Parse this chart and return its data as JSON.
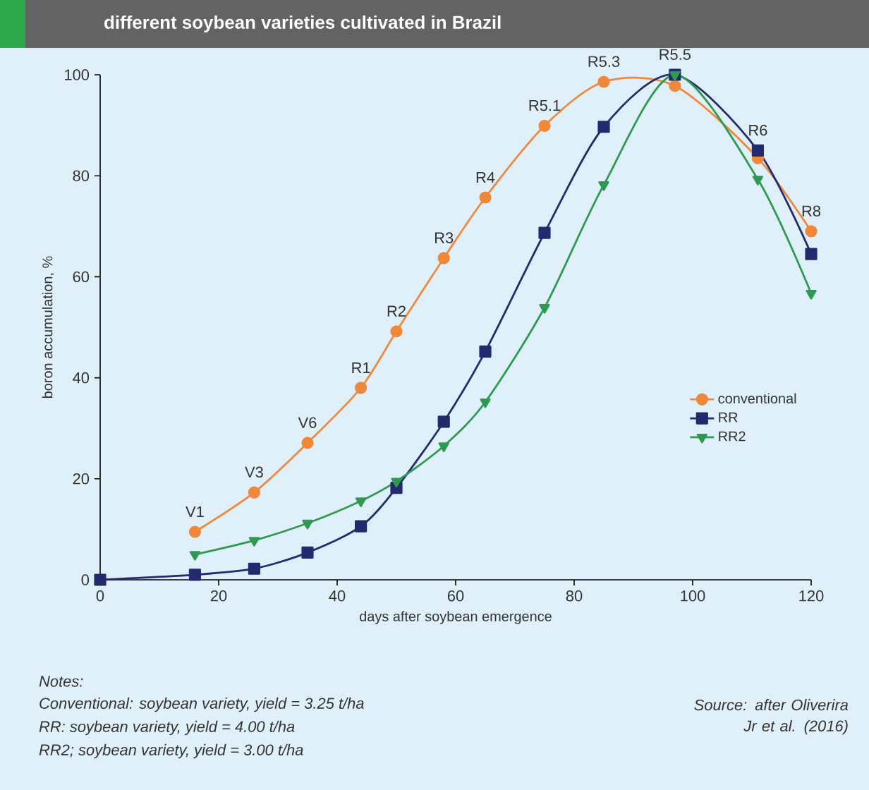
{
  "chart_data": {
    "type": "line",
    "title": "different soybean varieties cultivated in Brazil",
    "xlabel": "days after soybean emergence",
    "ylabel": "boron accumulation, %",
    "xlim": [
      0,
      120
    ],
    "xticks": [
      0,
      20,
      40,
      60,
      80,
      100,
      120
    ],
    "ylim": [
      0,
      100
    ],
    "yticks": [
      0,
      20,
      40,
      60,
      80,
      100
    ],
    "grid": false,
    "legend": "right",
    "line_style": "solid",
    "series": [
      {
        "name": "conventional",
        "color": "#f0883a",
        "marker": "circle",
        "x": [
          16,
          26,
          35,
          44,
          50,
          58,
          65,
          75,
          85,
          97,
          111,
          120
        ],
        "values": [
          9.5,
          17.3,
          27.1,
          38,
          49.2,
          63.7,
          75.7,
          89.9,
          98.6,
          97.8,
          83.5,
          69
        ]
      },
      {
        "name": "RR",
        "color": "#232a6e",
        "marker": "square",
        "x": [
          0,
          16,
          26,
          35,
          44,
          50,
          58,
          65,
          75,
          85,
          97,
          111,
          120
        ],
        "values": [
          0,
          1,
          2.2,
          5.4,
          10.6,
          18.2,
          31.3,
          45.2,
          68.7,
          89.7,
          100,
          85,
          64.5
        ]
      },
      {
        "name": "RR2",
        "color": "#2e9a4f",
        "marker": "triangle",
        "x": [
          16,
          26,
          35,
          44,
          50,
          58,
          65,
          75,
          85,
          97,
          111,
          120
        ],
        "values": [
          5,
          7.8,
          11.2,
          15.6,
          19.5,
          26.5,
          35.2,
          53.9,
          78.2,
          100,
          79.3,
          56.7
        ]
      }
    ],
    "annotations": [
      {
        "text": "V1",
        "x": 16,
        "y": 9.5
      },
      {
        "text": "V3",
        "x": 26,
        "y": 17.3
      },
      {
        "text": "V6",
        "x": 35,
        "y": 27.1
      },
      {
        "text": "R1",
        "x": 44,
        "y": 38
      },
      {
        "text": "R2",
        "x": 50,
        "y": 49.2
      },
      {
        "text": "R3",
        "x": 58,
        "y": 63.7
      },
      {
        "text": "R4",
        "x": 65,
        "y": 75.7
      },
      {
        "text": "R5.1",
        "x": 75,
        "y": 89.9
      },
      {
        "text": "R5.3",
        "x": 85,
        "y": 98.6
      },
      {
        "text": "R5.5",
        "x": 97,
        "y": 100
      },
      {
        "text": "R6",
        "x": 111,
        "y": 85
      },
      {
        "text": "R8",
        "x": 120,
        "y": 69
      },
      "Notes:",
      "Conventional: soybean variety, yield = 3.25 t/ha",
      "RR: soybean variety, yield = 4.00 t/ha",
      "RR2; soybean variety, yield = 3.00 t/ha",
      "Source: after Oliverira Jr et al. (2016)"
    ]
  }
}
